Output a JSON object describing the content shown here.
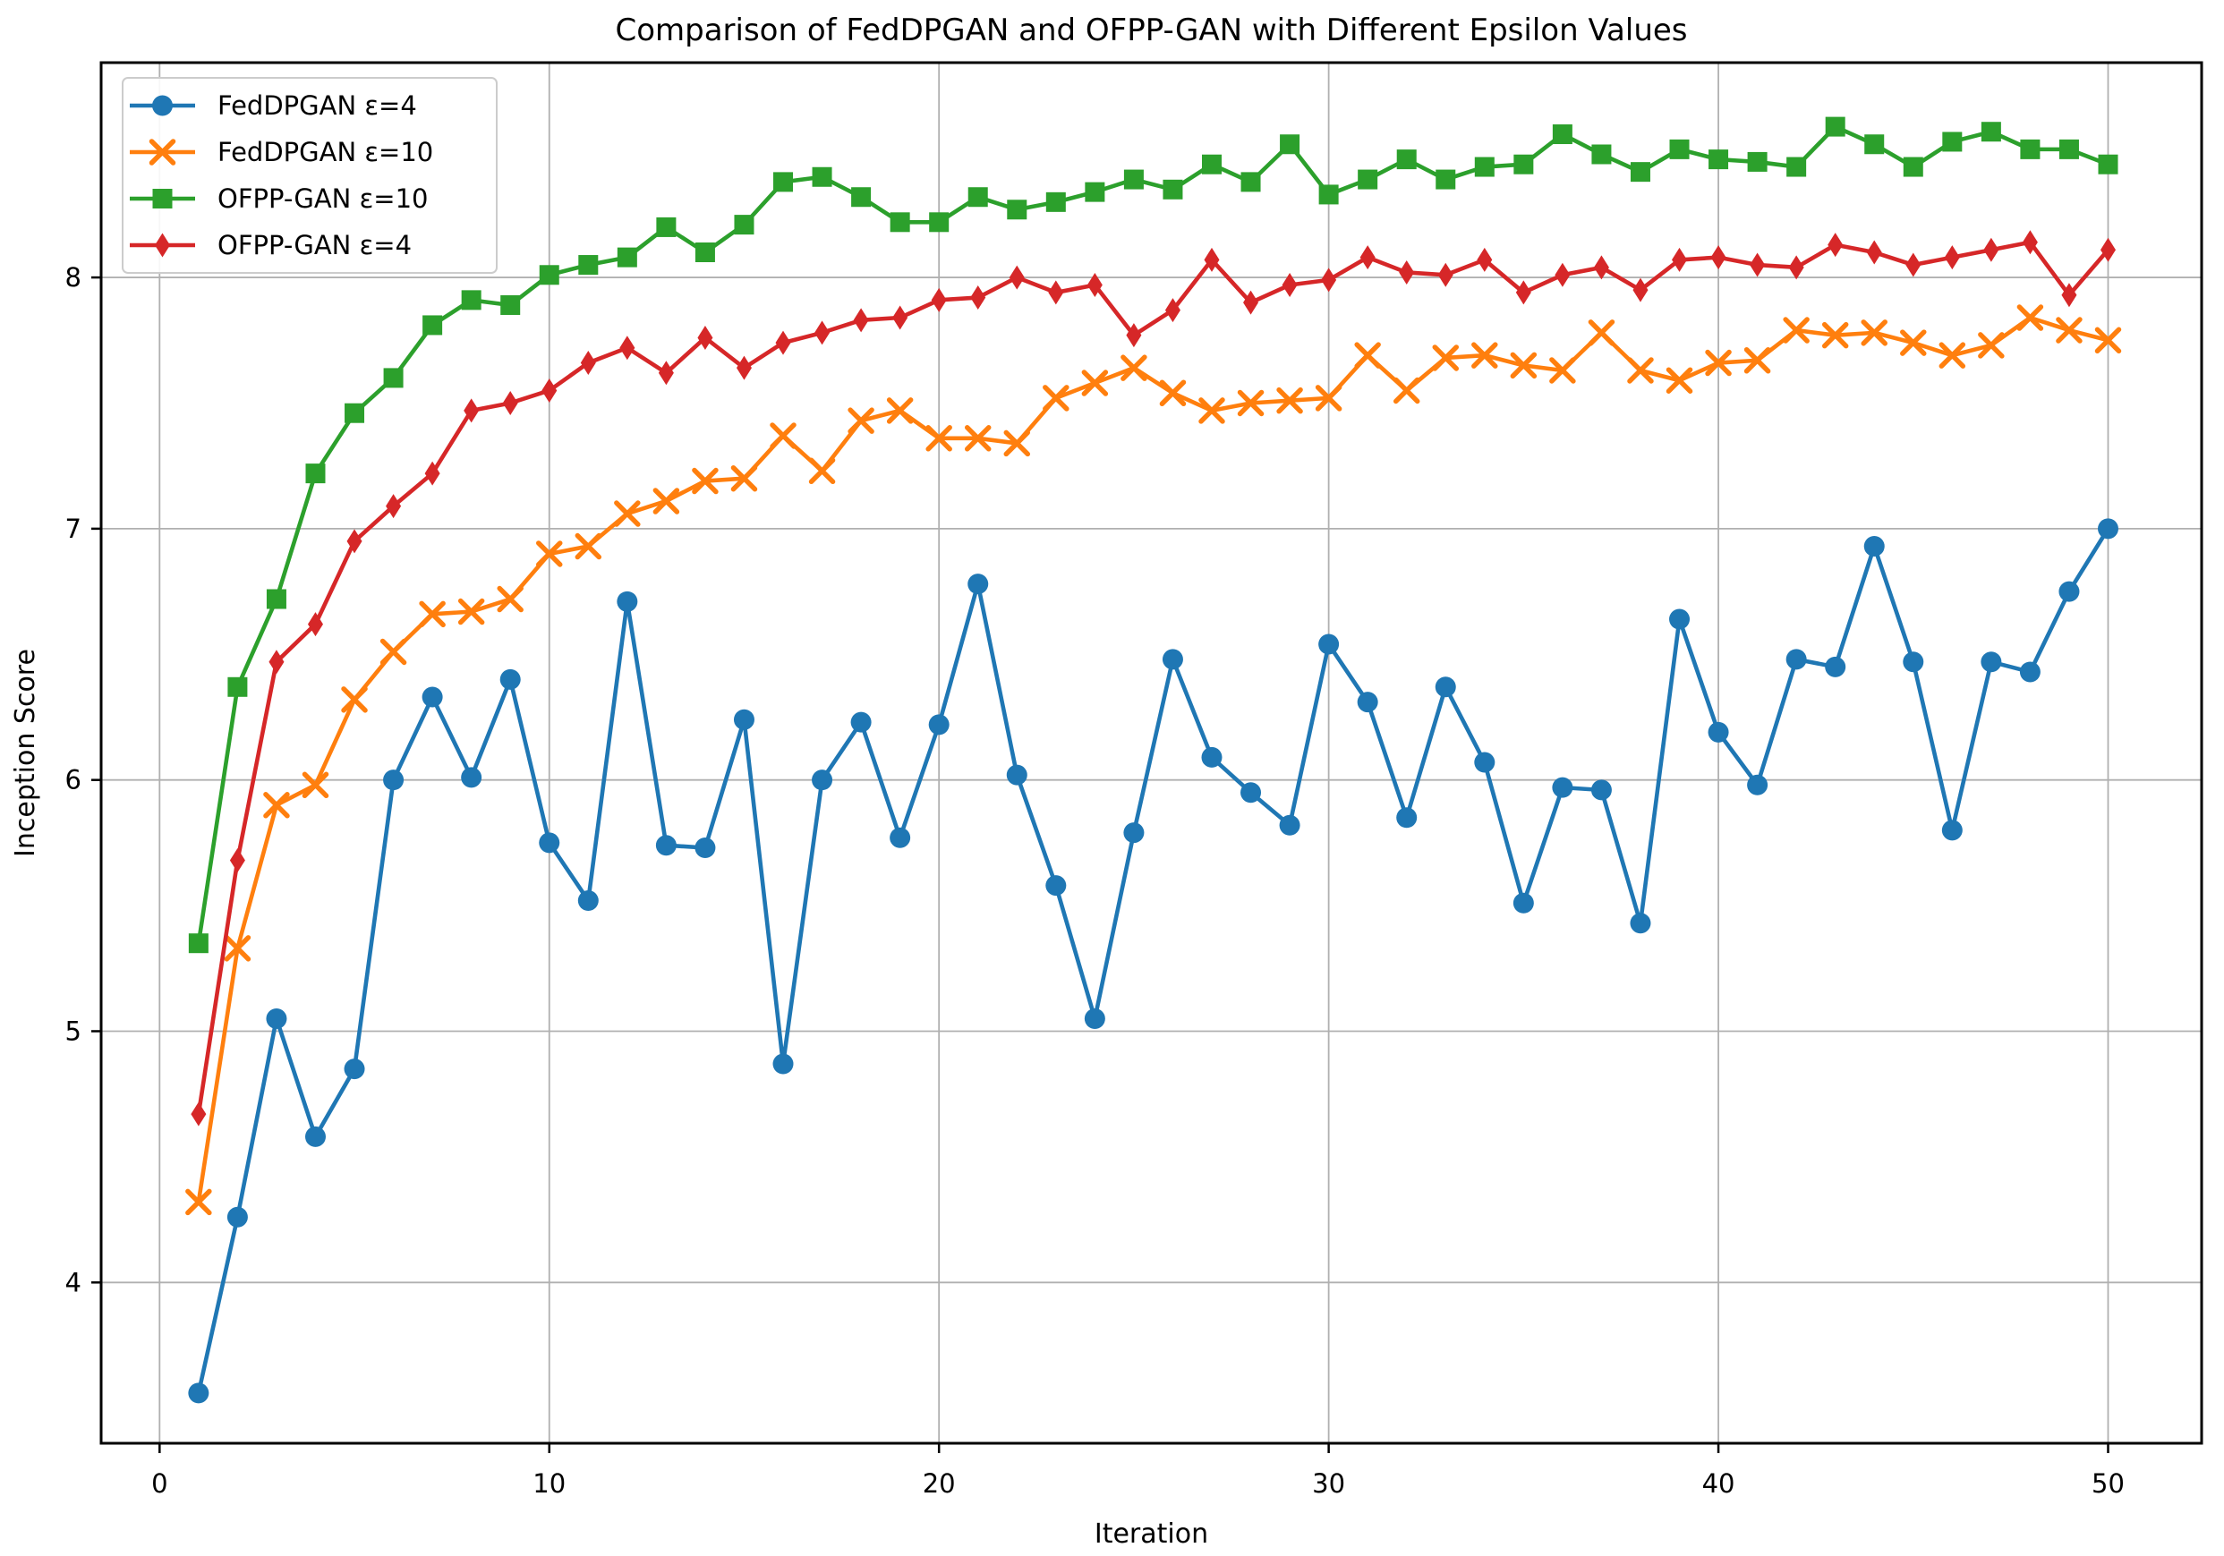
{
  "figure": {
    "background": "#ffffff",
    "grid_color": "#b0b0b0",
    "spine_color": "#000000"
  },
  "chart_data": {
    "type": "line",
    "title": "Comparison of FedDPGAN and OFPP-GAN with Different Epsilon Values",
    "xlabel": "Iteration",
    "ylabel": "Inception Score",
    "grid": true,
    "legend_position": "upper left",
    "xlim": [
      -1.5,
      52.4
    ],
    "ylim": [
      3.36,
      8.855
    ],
    "xticks": [
      0,
      10,
      20,
      30,
      40,
      50
    ],
    "yticks": [
      4,
      5,
      6,
      7,
      8
    ],
    "x": [
      1,
      2,
      3,
      4,
      5,
      6,
      7,
      8,
      9,
      10,
      11,
      12,
      13,
      14,
      15,
      16,
      17,
      18,
      19,
      20,
      21,
      22,
      23,
      24,
      25,
      26,
      27,
      28,
      29,
      30,
      31,
      32,
      33,
      34,
      35,
      36,
      37,
      38,
      39,
      40,
      41,
      42,
      43,
      44,
      45,
      46,
      47,
      48,
      49,
      50
    ],
    "series": [
      {
        "id": "feddpgan-eps4",
        "label": "FedDPGAN ε=4",
        "color": "#1f77b4",
        "marker": "circle",
        "values": [
          3.56,
          4.26,
          5.05,
          4.58,
          4.85,
          6.0,
          6.33,
          6.01,
          6.4,
          5.75,
          5.52,
          6.71,
          5.74,
          5.73,
          6.24,
          4.87,
          6.0,
          6.23,
          5.77,
          6.22,
          6.78,
          6.02,
          5.58,
          5.05,
          5.79,
          6.48,
          6.09,
          5.95,
          5.82,
          6.54,
          6.31,
          5.85,
          6.37,
          6.07,
          5.51,
          5.97,
          5.96,
          5.43,
          6.64,
          6.19,
          5.98,
          6.48,
          6.45,
          6.93,
          6.47,
          5.8,
          6.47,
          6.43,
          6.75,
          7.0
        ]
      },
      {
        "id": "feddpgan-eps10",
        "label": "FedDPGAN ε=10",
        "color": "#ff7f0e",
        "marker": "x",
        "values": [
          4.32,
          5.33,
          5.9,
          5.98,
          6.32,
          6.51,
          6.66,
          6.67,
          6.72,
          6.9,
          6.93,
          7.06,
          7.11,
          7.19,
          7.2,
          7.37,
          7.23,
          7.43,
          7.47,
          7.36,
          7.36,
          7.34,
          7.52,
          7.58,
          7.64,
          7.54,
          7.47,
          7.5,
          7.51,
          7.52,
          7.69,
          7.55,
          7.68,
          7.69,
          7.65,
          7.63,
          7.78,
          7.63,
          7.59,
          7.66,
          7.67,
          7.79,
          7.77,
          7.78,
          7.74,
          7.69,
          7.73,
          7.84,
          7.79,
          7.75
        ]
      },
      {
        "id": "ofpp-gan-eps10",
        "label": "OFPP-GAN ε=10",
        "color": "#2ca02c",
        "marker": "square",
        "values": [
          5.35,
          6.37,
          6.72,
          7.22,
          7.46,
          7.6,
          7.81,
          7.91,
          7.89,
          8.01,
          8.05,
          8.08,
          8.2,
          8.1,
          8.21,
          8.38,
          8.4,
          8.32,
          8.22,
          8.22,
          8.32,
          8.27,
          8.3,
          8.34,
          8.39,
          8.35,
          8.45,
          8.38,
          8.53,
          8.33,
          8.39,
          8.47,
          8.39,
          8.44,
          8.45,
          8.57,
          8.49,
          8.42,
          8.51,
          8.47,
          8.46,
          8.44,
          8.6,
          8.53,
          8.44,
          8.54,
          8.58,
          8.51,
          8.51,
          8.45
        ]
      },
      {
        "id": "ofpp-gan-eps4",
        "label": "OFPP-GAN ε=4",
        "color": "#d62728",
        "marker": "diamond",
        "values": [
          4.67,
          5.68,
          6.47,
          6.62,
          6.95,
          7.09,
          7.22,
          7.47,
          7.5,
          7.55,
          7.66,
          7.72,
          7.62,
          7.76,
          7.64,
          7.74,
          7.78,
          7.83,
          7.84,
          7.91,
          7.92,
          8.0,
          7.94,
          7.97,
          7.77,
          7.87,
          8.07,
          7.9,
          7.97,
          7.99,
          8.08,
          8.02,
          8.01,
          8.07,
          7.94,
          8.01,
          8.04,
          7.95,
          8.07,
          8.08,
          8.05,
          8.04,
          8.13,
          8.1,
          8.05,
          8.08,
          8.11,
          8.14,
          7.93,
          8.11
        ]
      }
    ]
  }
}
